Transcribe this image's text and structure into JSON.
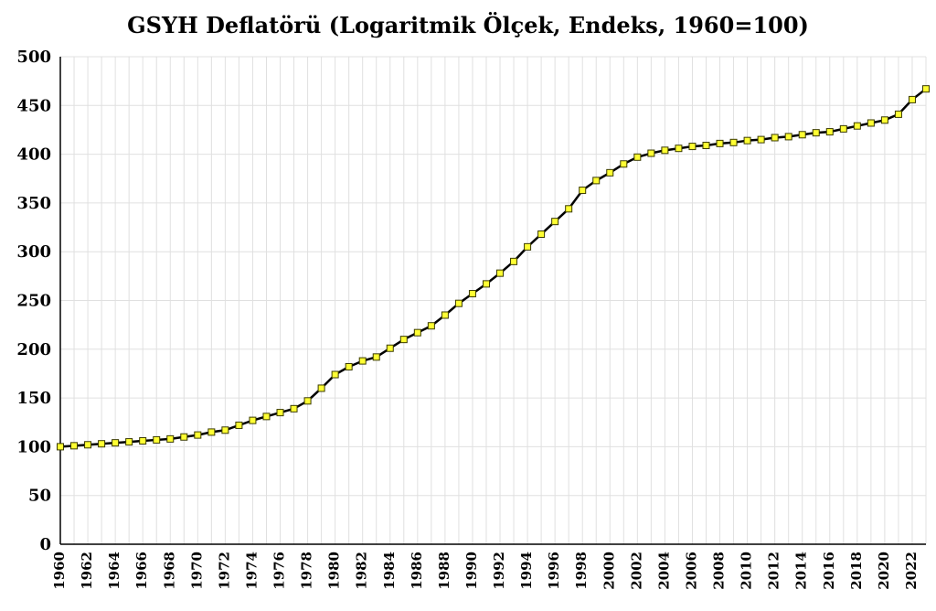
{
  "chart_data": {
    "type": "line",
    "title": "GSYH Deflatörü (Logaritmik Ölçek, Endeks, 1960=100)",
    "xlabel": "",
    "ylabel": "",
    "ylim": [
      0,
      500
    ],
    "y_ticks": [
      "0",
      "50",
      "100",
      "150",
      "200",
      "250",
      "300",
      "350",
      "400",
      "450",
      "500"
    ],
    "x_tick_labels": [
      "1960",
      "1962",
      "1964",
      "1966",
      "1968",
      "1970",
      "1972",
      "1974",
      "1976",
      "1978",
      "1980",
      "1982",
      "1984",
      "1986",
      "1988",
      "1990",
      "1992",
      "1994",
      "1996",
      "1998",
      "2000",
      "2002",
      "2004",
      "2006",
      "2008",
      "2010",
      "2012",
      "2014",
      "2016",
      "2018",
      "2020",
      "2022"
    ],
    "grid": true,
    "legend": "none",
    "line_color": "#000000",
    "marker_color": "#ffff33",
    "series": [
      {
        "x": [
          1960,
          1961,
          1962,
          1963,
          1964,
          1965,
          1966,
          1967,
          1968,
          1969,
          1970,
          1971,
          1972,
          1973,
          1974,
          1975,
          1976,
          1977,
          1978,
          1979,
          1980,
          1981,
          1982,
          1983,
          1984,
          1985,
          1986,
          1987,
          1988,
          1989,
          1990,
          1991,
          1992,
          1993,
          1994,
          1995,
          1996,
          1997,
          1998,
          1999,
          2000,
          2001,
          2002,
          2003,
          2004,
          2005,
          2006,
          2007,
          2008,
          2009,
          2010,
          2011,
          2012,
          2013,
          2014,
          2015,
          2016,
          2017,
          2018,
          2019,
          2020,
          2021,
          2022,
          2023
        ],
        "values": [
          100,
          101,
          102,
          103,
          104,
          105,
          106,
          107,
          108,
          110,
          112,
          115,
          117,
          122,
          127,
          131,
          135,
          139,
          147,
          160,
          174,
          182,
          188,
          192,
          201,
          210,
          217,
          224,
          235,
          247,
          257,
          267,
          278,
          290,
          305,
          318,
          331,
          344,
          363,
          373,
          381,
          390,
          397,
          401,
          404,
          406,
          408,
          409,
          411,
          412,
          414,
          415,
          417,
          418,
          420,
          422,
          423,
          426,
          429,
          432,
          435,
          441,
          456,
          467
        ]
      }
    ]
  }
}
